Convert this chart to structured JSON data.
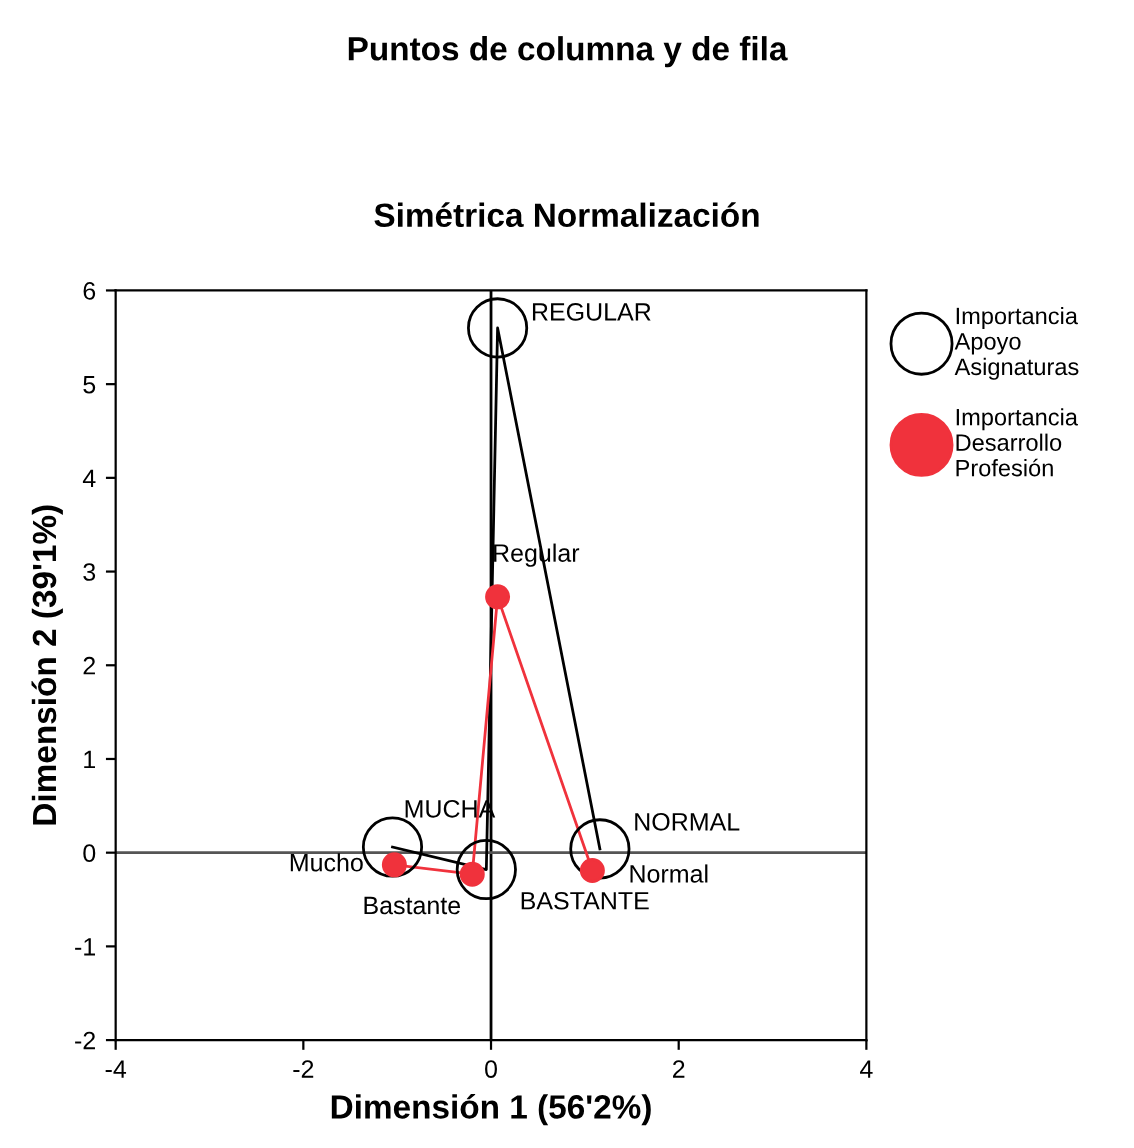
{
  "chart_data": {
    "type": "line",
    "title": "Puntos de columna y de fila",
    "subtitle": "Simétrica Normalización",
    "xlabel": "Dimensión 1 (56'2%)",
    "ylabel": "Dimensión 2 (39'1%)",
    "xlim": [
      -4,
      4
    ],
    "ylim": [
      -2,
      6
    ],
    "xticks": [
      -4,
      -2,
      0,
      2,
      4
    ],
    "yticks": [
      -2,
      -1,
      0,
      1,
      2,
      3,
      4,
      5,
      6
    ],
    "grid": false,
    "legend": "right",
    "marker": "circle",
    "line_style": "solid",
    "series": [
      {
        "name": "Importancia Apoyo Asignaturas",
        "color": "#000000",
        "x": [
          -1.05,
          -0.05,
          0.07,
          1.16
        ],
        "values": [
          0.06,
          -0.18,
          5.6,
          0.04
        ]
      },
      {
        "name": "Importancia Desarrollo Profesión",
        "color": "#f0323c",
        "x": [
          -1.03,
          -0.2,
          0.07,
          1.08
        ],
        "values": [
          -0.13,
          -0.23,
          2.73,
          -0.19
        ]
      }
    ],
    "ref_lines": [
      {
        "axis": "x",
        "value": 0,
        "color": "#000000"
      },
      {
        "axis": "y",
        "value": 0,
        "color": "#555555"
      }
    ],
    "annotations": [
      {
        "text": "MUCHA",
        "x": -1.05,
        "y": 0.06
      },
      {
        "text": "BASTANTE",
        "x": -0.05,
        "y": -0.18
      },
      {
        "text": "REGULAR",
        "x": 0.07,
        "y": 5.6
      },
      {
        "text": "NORMAL",
        "x": 1.16,
        "y": 0.04
      },
      {
        "text": "Mucho",
        "x": -1.03,
        "y": -0.13
      },
      {
        "text": "Bastante",
        "x": -0.2,
        "y": -0.23
      },
      {
        "text": "Regular",
        "x": 0.07,
        "y": 2.73
      },
      {
        "text": "Normal",
        "x": 1.08,
        "y": -0.19
      }
    ]
  }
}
